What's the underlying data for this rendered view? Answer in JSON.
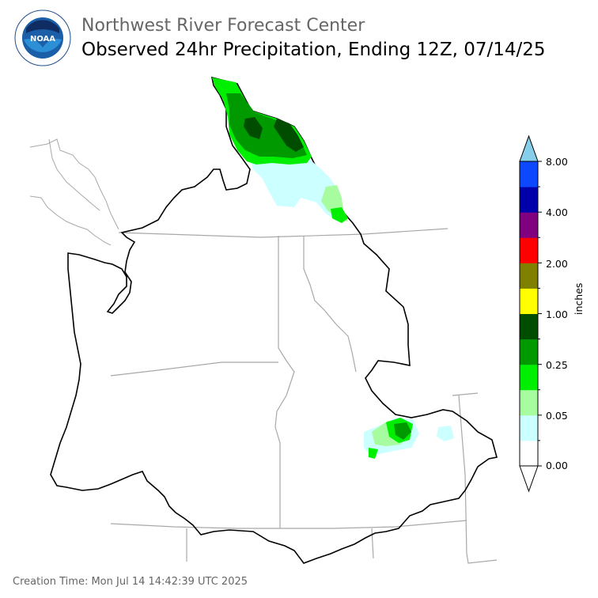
{
  "header": {
    "center_name": "Northwest River Forecast Center",
    "map_title": "Observed 24hr Precipitation, Ending 12Z, 07/14/25"
  },
  "logo": {
    "text": "NOAA",
    "ring_text": "NATIONAL OCEANIC AND ATMOSPHERIC ADMINISTRATION · U.S. DEPARTMENT OF COMMERCE"
  },
  "legend": {
    "units": "inches",
    "tick_labels": [
      "0.00",
      "0.05",
      "0.25",
      "1.00",
      "2.00",
      "4.00",
      "8.00"
    ],
    "colors": [
      "#ffffff",
      "#ccffff",
      "#a8fca0",
      "#00ee00",
      "#009900",
      "#004d00",
      "#ffff00",
      "#808000",
      "#ff0000",
      "#ff0000",
      "#800080",
      "#0000aa",
      "#0d48ff",
      "#87ceeb"
    ]
  },
  "footer": {
    "creation_time": "Creation Time: Mon Jul 14 14:42:39 UTC 2025"
  },
  "colors": {
    "basin_outline": "#000000",
    "state_lines": "#a8a8a8",
    "title_gray": "#666666"
  }
}
